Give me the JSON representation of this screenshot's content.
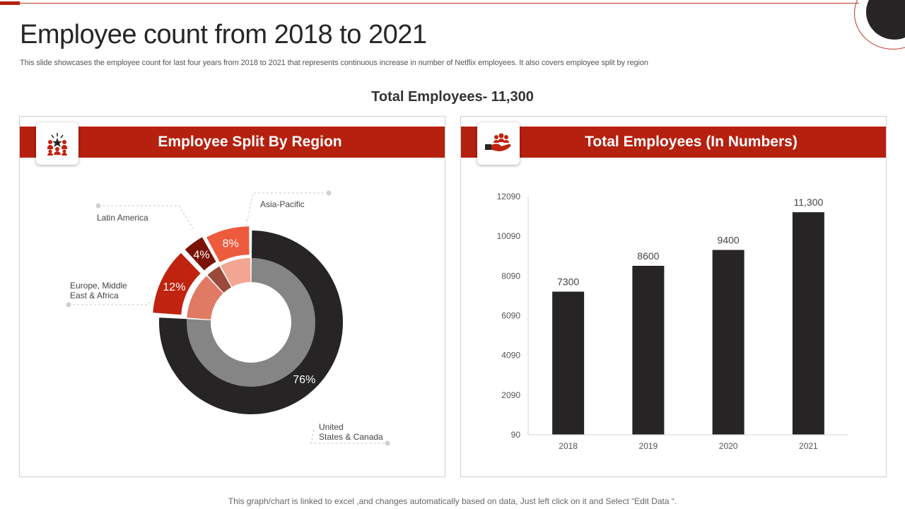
{
  "slide": {
    "title": "Employee count from 2018 to 2021",
    "subtitle": "This slide showcases the employee count for last four years from 2018 to 2021 that represents continuous increase in number of Netflix employees. It also covers employee split by region",
    "total_label": "Total Employees- 11,300",
    "footer": "This graph/chart is linked to excel ,and changes automatically based on data, Just left click on it and Select “Edit Data “."
  },
  "panels": {
    "left": {
      "header": "Employee Split By Region",
      "icon": "team-leader-icon"
    },
    "right": {
      "header": "Total Employees (In Numbers)",
      "icon": "hand-holding-people-icon"
    }
  },
  "colors": {
    "accent": "#b5200f",
    "dark": "#262425",
    "grey": "#888888",
    "asia": "#ee5a3c",
    "latam": "#7a1205",
    "emea": "#c0230f"
  },
  "chart_data": [
    {
      "type": "pie",
      "title": "Employee Split By Region",
      "categories": [
        "United States & Canada",
        "Europe, Middle East & Africa",
        "Latin America",
        "Asia-Pacific"
      ],
      "values": [
        76,
        12,
        4,
        8
      ],
      "labels": [
        "76%",
        "12%",
        "4%",
        "8%"
      ],
      "legend_labels": [
        [
          "United",
          "States & Canada"
        ],
        [
          "Europe, Middle",
          "East & Africa"
        ],
        [
          "Latin America"
        ],
        [
          "Asia-Pacific"
        ]
      ]
    },
    {
      "type": "bar",
      "title": "Total Employees (In Numbers)",
      "categories": [
        "2018",
        "2019",
        "2020",
        "2021"
      ],
      "values": [
        7300,
        8600,
        9400,
        11300
      ],
      "data_labels": [
        "7300",
        "8600",
        "9400",
        "11,300"
      ],
      "yticks": [
        "90",
        "2090",
        "4090",
        "6090",
        "8090",
        "10090",
        "12090"
      ],
      "ylim": [
        90,
        12090
      ],
      "xlabel": "",
      "ylabel": ""
    }
  ]
}
